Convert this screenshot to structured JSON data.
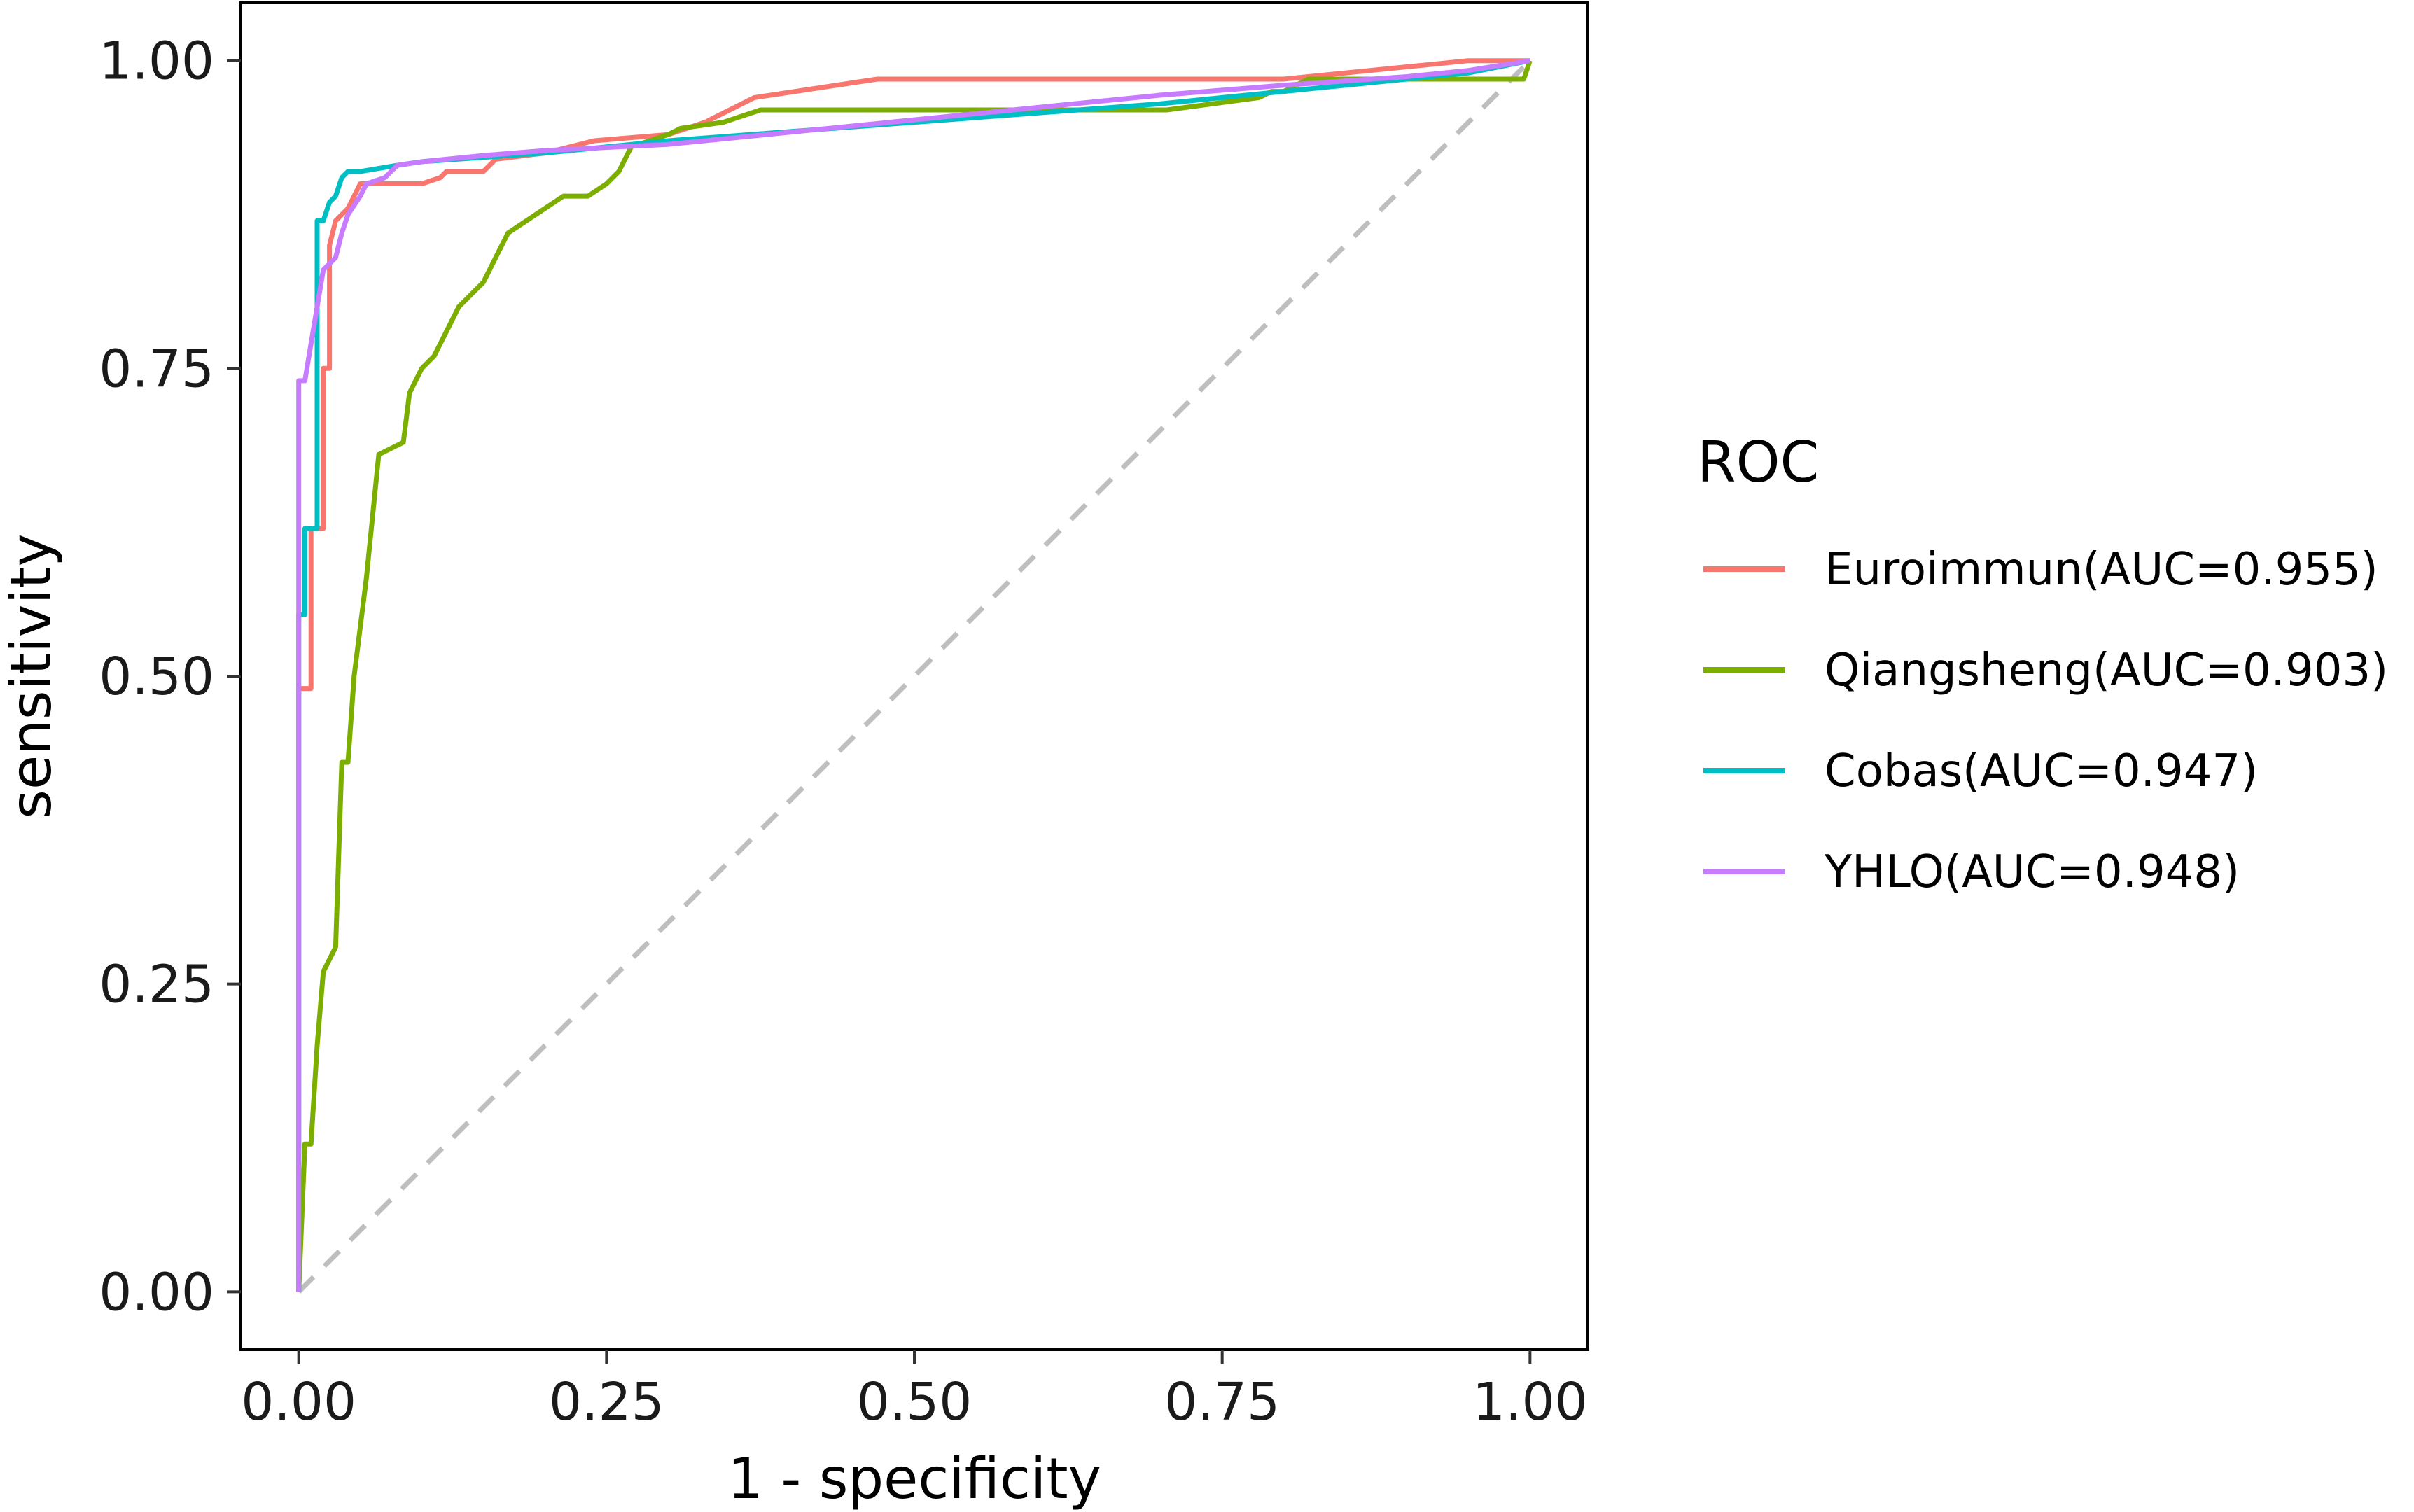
{
  "chart_data": {
    "type": "line",
    "title": "",
    "xlabel": "1 - specificity",
    "ylabel": "sensitivity",
    "xlim": [
      -0.047,
      1.047
    ],
    "ylim": [
      -0.047,
      1.047
    ],
    "x_ticks": [
      0,
      0.25,
      0.5,
      0.75,
      1
    ],
    "y_ticks": [
      0,
      0.25,
      0.5,
      0.75,
      1
    ],
    "x_tick_labels": [
      "0.00",
      "0.25",
      "0.50",
      "0.75",
      "1.00"
    ],
    "y_tick_labels": [
      "0.00",
      "0.25",
      "0.50",
      "0.75",
      "1.00"
    ],
    "grid": false,
    "legend": {
      "title": "ROC",
      "position": "right"
    },
    "reference_line": {
      "x": [
        0,
        1
      ],
      "y": [
        0,
        1
      ],
      "color": "#bebebe",
      "style": "dashed"
    },
    "series": [
      {
        "name": "Euroimmun(AUC=0.955)",
        "color": "#F8766D",
        "x": [
          0,
          0,
          0.01,
          0.01,
          0.02,
          0.02,
          0.025,
          0.025,
          0.03,
          0.035,
          0.04,
          0.045,
          0.05,
          0.06,
          0.08,
          0.1,
          0.115,
          0.12,
          0.15,
          0.16,
          0.2,
          0.24,
          0.3,
          0.33,
          0.37,
          0.47,
          0.6,
          0.8,
          0.95,
          1
        ],
        "y": [
          0,
          0.49,
          0.49,
          0.62,
          0.62,
          0.75,
          0.75,
          0.85,
          0.87,
          0.875,
          0.88,
          0.89,
          0.9,
          0.9,
          0.9,
          0.9,
          0.905,
          0.91,
          0.91,
          0.92,
          0.925,
          0.935,
          0.94,
          0.95,
          0.97,
          0.985,
          0.985,
          0.985,
          1,
          1
        ]
      },
      {
        "name": "Qiangsheng(AUC=0.903)",
        "color": "#7CAE00",
        "x": [
          0,
          0.005,
          0.01,
          0.015,
          0.02,
          0.025,
          0.03,
          0.035,
          0.04,
          0.045,
          0.055,
          0.065,
          0.085,
          0.09,
          0.1,
          0.11,
          0.13,
          0.14,
          0.15,
          0.155,
          0.16,
          0.17,
          0.185,
          0.2,
          0.215,
          0.235,
          0.25,
          0.26,
          0.265,
          0.27,
          0.3,
          0.31,
          0.345,
          0.375,
          0.5,
          0.705,
          0.78,
          0.79,
          0.8,
          0.81,
          0.82,
          0.85,
          0.9,
          0.95,
          0.995,
          1
        ],
        "y": [
          0,
          0.12,
          0.12,
          0.2,
          0.26,
          0.27,
          0.28,
          0.43,
          0.43,
          0.5,
          0.58,
          0.68,
          0.69,
          0.73,
          0.75,
          0.76,
          0.8,
          0.81,
          0.82,
          0.83,
          0.84,
          0.86,
          0.87,
          0.88,
          0.89,
          0.89,
          0.9,
          0.91,
          0.92,
          0.93,
          0.94,
          0.945,
          0.95,
          0.96,
          0.96,
          0.96,
          0.97,
          0.975,
          0.975,
          0.98,
          0.985,
          0.985,
          0.985,
          0.985,
          0.985,
          1
        ]
      },
      {
        "name": "Cobas(AUC=0.947)",
        "color": "#00BFC4",
        "x": [
          0,
          0,
          0.005,
          0.005,
          0.015,
          0.015,
          0.02,
          0.025,
          0.03,
          0.035,
          0.04,
          0.05,
          0.08,
          0.1,
          0.2,
          0.3,
          0.5,
          0.7,
          0.8,
          0.9,
          0.95,
          1
        ],
        "y": [
          0,
          0.55,
          0.55,
          0.62,
          0.62,
          0.87,
          0.87,
          0.885,
          0.89,
          0.905,
          0.91,
          0.91,
          0.915,
          0.918,
          0.925,
          0.935,
          0.95,
          0.965,
          0.975,
          0.985,
          0.99,
          1
        ]
      },
      {
        "name": "YHLO(AUC=0.948)",
        "color": "#C77CFF",
        "x": [
          0,
          0,
          0.005,
          0.01,
          0.015,
          0.02,
          0.025,
          0.03,
          0.035,
          0.04,
          0.05,
          0.055,
          0.07,
          0.08,
          0.1,
          0.15,
          0.2,
          0.3,
          0.4,
          0.5,
          0.6,
          0.7,
          0.8,
          0.9,
          0.95,
          1
        ],
        "y": [
          0,
          0.74,
          0.74,
          0.77,
          0.8,
          0.83,
          0.835,
          0.84,
          0.86,
          0.875,
          0.89,
          0.9,
          0.905,
          0.915,
          0.918,
          0.923,
          0.927,
          0.932,
          0.942,
          0.952,
          0.962,
          0.972,
          0.98,
          0.987,
          0.992,
          1
        ]
      }
    ]
  }
}
